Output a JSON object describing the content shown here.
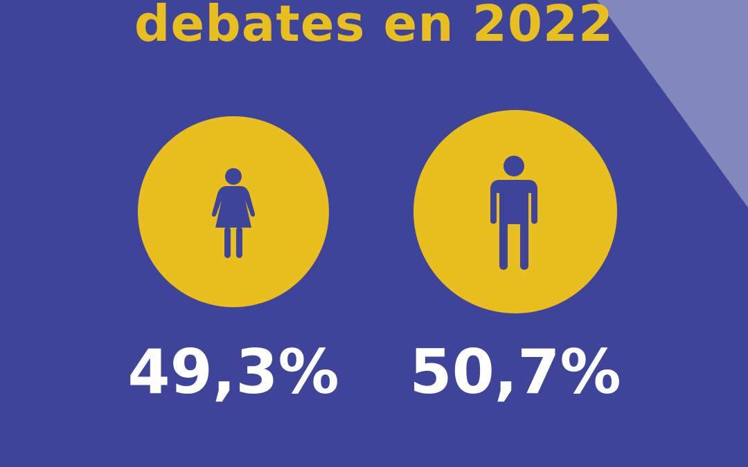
{
  "headline": "debates en 2022",
  "figures": [
    {
      "label": "",
      "icon": "woman-icon",
      "value": "49,3%"
    },
    {
      "label": "",
      "icon": "man-icon",
      "value": "50,7%"
    }
  ],
  "colors": {
    "background": "#3d4499",
    "accent": "#e8bf1f",
    "corner": "#8188bb",
    "text": "#ffffff"
  }
}
